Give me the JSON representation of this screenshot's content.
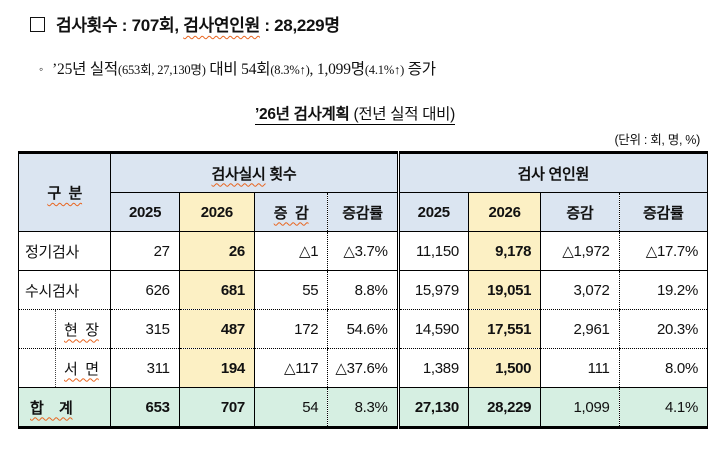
{
  "page": {
    "line1": {
      "prefix": "검사횟수 : 707회, ",
      "wavy": "검사연인원",
      "suffix": " : 28,229명"
    },
    "line2": {
      "bullet": "◦",
      "seg1": "’25년 실적",
      "seg2": "(653회, 27,130명)",
      "seg3": " 대비 54회",
      "seg4": "(8.3%↑)",
      "seg5": ", 1,099명",
      "seg6": "(4.1%↑)",
      "seg7": " 증가"
    },
    "title": {
      "main": "’26년 검사계획",
      "sub": " (전년 실적 대비)"
    },
    "unit": "(단위 : 회, 명, %)"
  },
  "table": {
    "header": {
      "corner": "구  분",
      "group1_wavy": "검사실시",
      "group1_rest": " 횟수",
      "group2": "검사 연인원",
      "sub_left": [
        "2025",
        "2026",
        "증  감",
        "증감률"
      ],
      "sub_right": [
        "2025",
        "2026",
        "증감",
        "증감률"
      ]
    },
    "rows": [
      {
        "label": "정기검사",
        "cells": [
          "27",
          "26",
          "△1",
          "△3.7%",
          "11,150",
          "9,178",
          "△1,972",
          "△17.7%"
        ]
      },
      {
        "label": "수시검사",
        "cells": [
          "626",
          "681",
          "55",
          "8.8%",
          "15,979",
          "19,051",
          "3,072",
          "19.2%"
        ]
      },
      {
        "label": "현  장",
        "cells": [
          "315",
          "487",
          "172",
          "54.6%",
          "14,590",
          "17,551",
          "2,961",
          "20.3%"
        ]
      },
      {
        "label": "서  면",
        "cells": [
          "311",
          "194",
          "△117",
          "△37.6%",
          "1,389",
          "1,500",
          "111",
          "8.0%"
        ]
      }
    ],
    "total": {
      "label": "합    계",
      "cells": [
        "653",
        "707",
        "54",
        "8.3%",
        "27,130",
        "28,229",
        "1,099",
        "4.1%"
      ]
    }
  },
  "colors": {
    "header_bg": "#dbe5f1",
    "col2026_bg": "#fcf0c4",
    "total_bg": "#d6efe2",
    "wavy_underline": "#e8641e"
  }
}
